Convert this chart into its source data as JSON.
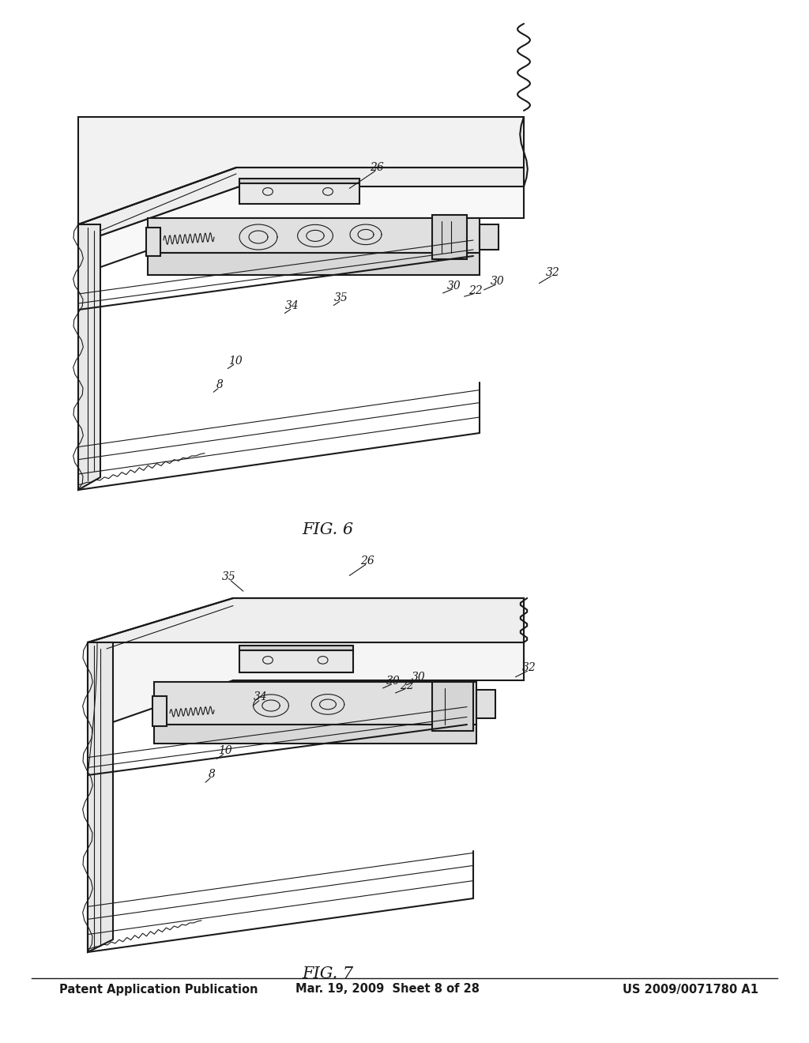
{
  "background_color": "#ffffff",
  "line_color": "#1a1a1a",
  "header_left": "Patent Application Publication",
  "header_center": "Mar. 19, 2009  Sheet 8 of 28",
  "header_right": "US 2009/0071780 A1",
  "header_fontsize": 10.5,
  "label_fontsize": 10,
  "caption_fontsize": 15
}
